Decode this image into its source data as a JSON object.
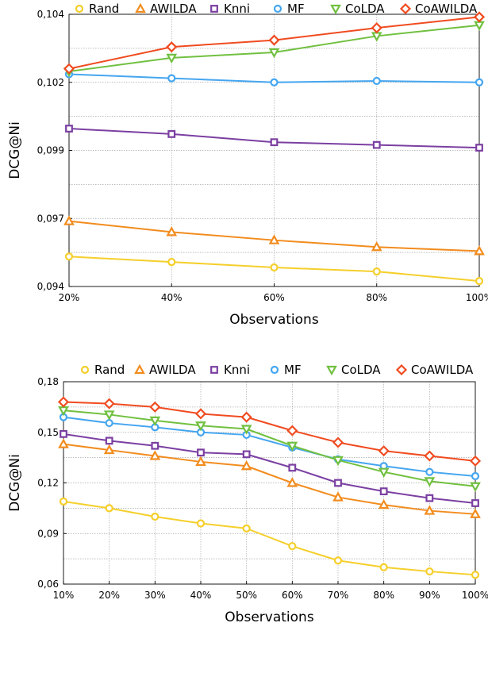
{
  "chart_data": [
    {
      "type": "line",
      "xlabel": "Observations",
      "ylabel": "DCG@Ni",
      "categories": [
        "20%",
        "40%",
        "60%",
        "80%",
        "100%"
      ],
      "yticks": [
        "0,094",
        "0,097",
        "0,099",
        "0,102",
        "0,104"
      ],
      "ytick_values": [
        0.094,
        0.0965,
        0.099,
        0.1015,
        0.104
      ],
      "ylim": [
        0.094,
        0.104
      ],
      "grid": true,
      "legend_position": "top",
      "series": [
        {
          "name": "Rand",
          "color": "#F5CF2B",
          "marker": "circle",
          "values": [
            0.0951,
            0.0949,
            0.0947,
            0.09455,
            0.0942
          ]
        },
        {
          "name": "AWILDA",
          "color": "#F28C1E",
          "marker": "triangle",
          "values": [
            0.0964,
            0.096,
            0.0957,
            0.09545,
            0.0953
          ]
        },
        {
          "name": "Knni",
          "color": "#7B3FA2",
          "marker": "square",
          "values": [
            0.0998,
            0.0996,
            0.0993,
            0.0992,
            0.0991
          ]
        },
        {
          "name": "MF",
          "color": "#45A6F0",
          "marker": "circle",
          "values": [
            0.1018,
            0.10165,
            0.1015,
            0.10155,
            0.1015
          ]
        },
        {
          "name": "CoLDA",
          "color": "#71C040",
          "marker": "triangle-down",
          "values": [
            0.1019,
            0.1024,
            0.1026,
            0.1032,
            0.1036
          ]
        },
        {
          "name": "CoAWILDA",
          "color": "#F04B20",
          "marker": "diamond",
          "values": [
            0.102,
            0.1028,
            0.10305,
            0.1035,
            0.1039
          ]
        }
      ]
    },
    {
      "type": "line",
      "xlabel": "Observations",
      "ylabel": "DCG@Ni",
      "categories": [
        "10%",
        "20%",
        "30%",
        "40%",
        "50%",
        "60%",
        "70%",
        "80%",
        "90%",
        "100%"
      ],
      "yticks": [
        "0,06",
        "0,09",
        "0,12",
        "0,15",
        "0,18"
      ],
      "ytick_values": [
        0.06,
        0.09,
        0.12,
        0.15,
        0.18
      ],
      "ylim": [
        0.06,
        0.18
      ],
      "grid": true,
      "legend_position": "top",
      "series": [
        {
          "name": "Rand",
          "color": "#F5CF2B",
          "marker": "circle",
          "values": [
            0.109,
            0.105,
            0.1,
            0.096,
            0.093,
            0.0825,
            0.074,
            0.07,
            0.0675,
            0.0655
          ]
        },
        {
          "name": "AWILDA",
          "color": "#F28C1E",
          "marker": "triangle",
          "values": [
            0.143,
            0.1395,
            0.136,
            0.1325,
            0.13,
            0.12,
            0.1115,
            0.107,
            0.1035,
            0.1015
          ]
        },
        {
          "name": "Knni",
          "color": "#7B3FA2",
          "marker": "square",
          "values": [
            0.149,
            0.145,
            0.142,
            0.138,
            0.137,
            0.129,
            0.12,
            0.115,
            0.111,
            0.108
          ]
        },
        {
          "name": "MF",
          "color": "#45A6F0",
          "marker": "circle",
          "values": [
            0.159,
            0.1555,
            0.153,
            0.15,
            0.1485,
            0.141,
            0.134,
            0.13,
            0.1265,
            0.124
          ]
        },
        {
          "name": "CoLDA",
          "color": "#71C040",
          "marker": "triangle-down",
          "values": [
            0.163,
            0.1605,
            0.157,
            0.154,
            0.152,
            0.142,
            0.1335,
            0.1265,
            0.121,
            0.118
          ]
        },
        {
          "name": "CoAWILDA",
          "color": "#F04B20",
          "marker": "diamond",
          "values": [
            0.168,
            0.167,
            0.165,
            0.161,
            0.159,
            0.151,
            0.144,
            0.139,
            0.136,
            0.133
          ]
        }
      ]
    }
  ]
}
